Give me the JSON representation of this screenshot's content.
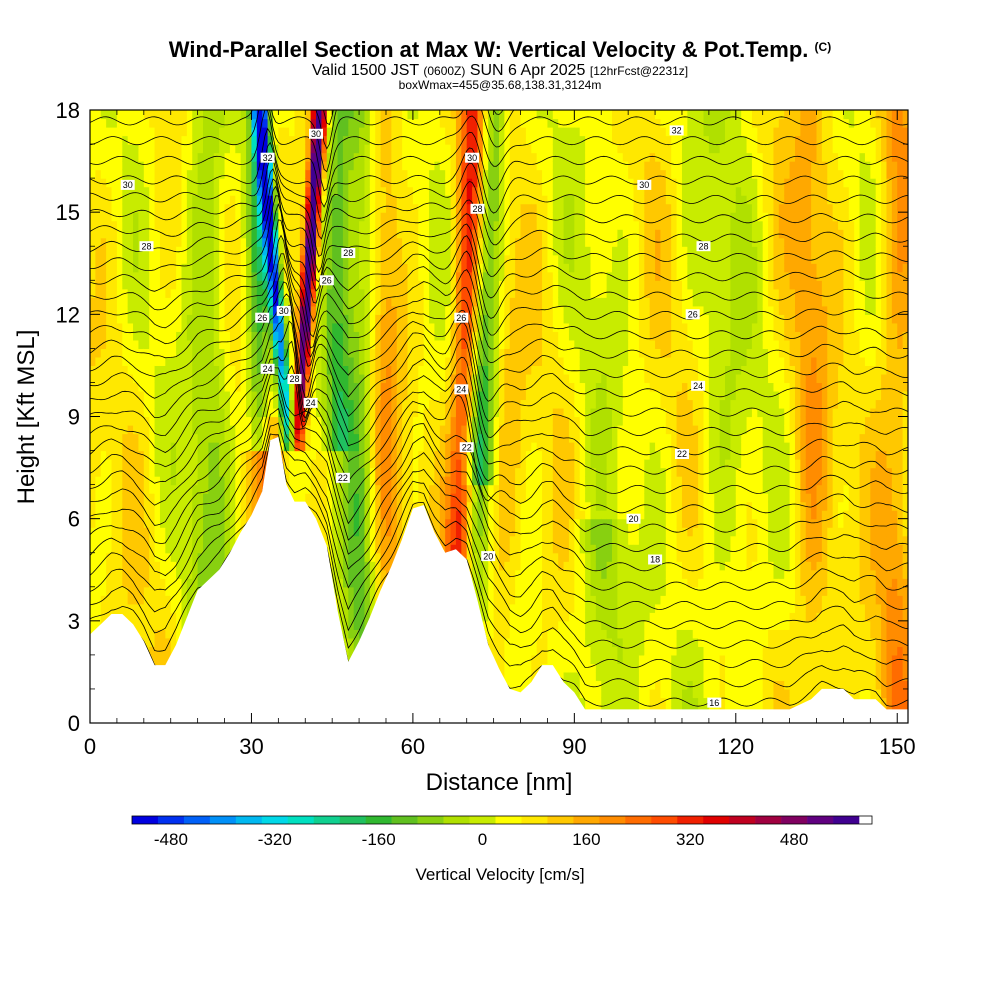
{
  "header": {
    "title": "Wind-Parallel Section at Max W: Vertical Velocity & Pot.Temp.",
    "copyright": "(C)",
    "valid_prefix": "Valid 1500 JST",
    "valid_utc": "(0600Z)",
    "valid_date": "SUN 6 Apr 2025",
    "forecast": "[12hrFcst@2231z]",
    "boxmax": "boxWmax=455@35.68,138.31,3124m"
  },
  "chart_data": {
    "type": "heatmap",
    "xlabel": "Distance [nm]",
    "ylabel": "Height [Kft MSL]",
    "xlim": [
      0,
      152
    ],
    "ylim": [
      0,
      18
    ],
    "x_ticks": [
      0,
      30,
      60,
      90,
      120,
      150
    ],
    "y_ticks": [
      0,
      3,
      6,
      9,
      12,
      15,
      18
    ],
    "colorbar": {
      "label": "Vertical Velocity [cm/s]",
      "ticks": [
        -480,
        -320,
        -160,
        0,
        160,
        320,
        480
      ],
      "range": [
        -540,
        600
      ],
      "step": 40,
      "colors": [
        "#0000e0",
        "#0030f0",
        "#0060f8",
        "#0090f8",
        "#00b8f0",
        "#00d8e8",
        "#00e0c0",
        "#10d090",
        "#20c060",
        "#30b830",
        "#60c020",
        "#88d010",
        "#b0e000",
        "#c8ec00",
        "#ffff00",
        "#ffe800",
        "#ffc800",
        "#ffa800",
        "#ff8c00",
        "#ff6c00",
        "#ff4c00",
        "#f02000",
        "#e00000",
        "#c00020",
        "#a00040",
        "#800060",
        "#600080",
        "#400090"
      ]
    },
    "terrain_kft": [
      [
        0,
        2.6
      ],
      [
        2,
        2.9
      ],
      [
        4,
        3.2
      ],
      [
        6,
        3.2
      ],
      [
        8,
        2.9
      ],
      [
        10,
        2.4
      ],
      [
        12,
        1.7
      ],
      [
        14,
        1.7
      ],
      [
        16,
        2.3
      ],
      [
        18,
        3.1
      ],
      [
        20,
        3.9
      ],
      [
        22,
        4.2
      ],
      [
        24,
        4.5
      ],
      [
        26,
        5.0
      ],
      [
        28,
        5.6
      ],
      [
        30,
        6.1
      ],
      [
        32,
        6.8
      ],
      [
        33.5,
        8.3
      ],
      [
        35,
        8.4
      ],
      [
        36.5,
        7.0
      ],
      [
        38,
        6.5
      ],
      [
        40,
        6.5
      ],
      [
        42,
        6.0
      ],
      [
        44,
        5.2
      ],
      [
        46,
        3.3
      ],
      [
        48,
        1.8
      ],
      [
        50,
        2.4
      ],
      [
        52,
        3.1
      ],
      [
        54,
        3.9
      ],
      [
        56,
        4.6
      ],
      [
        58,
        5.4
      ],
      [
        60,
        6.3
      ],
      [
        62,
        6.4
      ],
      [
        64,
        5.6
      ],
      [
        66,
        5.0
      ],
      [
        68,
        5.1
      ],
      [
        70,
        4.8
      ],
      [
        72,
        3.6
      ],
      [
        74,
        2.3
      ],
      [
        76,
        1.6
      ],
      [
        78,
        1.0
      ],
      [
        80,
        0.9
      ],
      [
        82,
        1.2
      ],
      [
        84,
        1.7
      ],
      [
        86,
        1.7
      ],
      [
        88,
        1.2
      ],
      [
        90,
        0.9
      ],
      [
        92,
        0.4
      ],
      [
        96,
        0.4
      ],
      [
        100,
        0.4
      ],
      [
        110,
        0.4
      ],
      [
        120,
        0.4
      ],
      [
        130,
        0.4
      ],
      [
        134,
        0.7
      ],
      [
        136,
        1.0
      ],
      [
        140,
        1.0
      ],
      [
        142,
        0.7
      ],
      [
        146,
        0.7
      ],
      [
        148,
        0.4
      ],
      [
        150,
        0.4
      ],
      [
        152,
        0.4
      ]
    ],
    "theta_contour_labels": [
      {
        "x": 7,
        "y": 15.8,
        "text": "30"
      },
      {
        "x": 10.5,
        "y": 14.0,
        "text": "28"
      },
      {
        "x": 33,
        "y": 16.6,
        "text": "32"
      },
      {
        "x": 42,
        "y": 17.3,
        "text": "30"
      },
      {
        "x": 48,
        "y": 13.8,
        "text": "28"
      },
      {
        "x": 44,
        "y": 13.0,
        "text": "26"
      },
      {
        "x": 36,
        "y": 12.1,
        "text": "30"
      },
      {
        "x": 32,
        "y": 11.9,
        "text": "26"
      },
      {
        "x": 33,
        "y": 10.4,
        "text": "24"
      },
      {
        "x": 38,
        "y": 10.1,
        "text": "28"
      },
      {
        "x": 41,
        "y": 9.4,
        "text": "24"
      },
      {
        "x": 47,
        "y": 7.2,
        "text": "22"
      },
      {
        "x": 71,
        "y": 16.6,
        "text": "30"
      },
      {
        "x": 72,
        "y": 15.1,
        "text": "28"
      },
      {
        "x": 69,
        "y": 11.9,
        "text": "26"
      },
      {
        "x": 69,
        "y": 9.8,
        "text": "24"
      },
      {
        "x": 70,
        "y": 8.1,
        "text": "22"
      },
      {
        "x": 74,
        "y": 4.9,
        "text": "20"
      },
      {
        "x": 109,
        "y": 17.4,
        "text": "32"
      },
      {
        "x": 103,
        "y": 15.8,
        "text": "30"
      },
      {
        "x": 114,
        "y": 14.0,
        "text": "28"
      },
      {
        "x": 112,
        "y": 12.0,
        "text": "26"
      },
      {
        "x": 113,
        "y": 9.9,
        "text": "24"
      },
      {
        "x": 110,
        "y": 7.9,
        "text": "22"
      },
      {
        "x": 101,
        "y": 6.0,
        "text": "20"
      },
      {
        "x": 105,
        "y": 4.8,
        "text": "18"
      },
      {
        "x": 116,
        "y": 0.6,
        "text": "16"
      }
    ]
  }
}
